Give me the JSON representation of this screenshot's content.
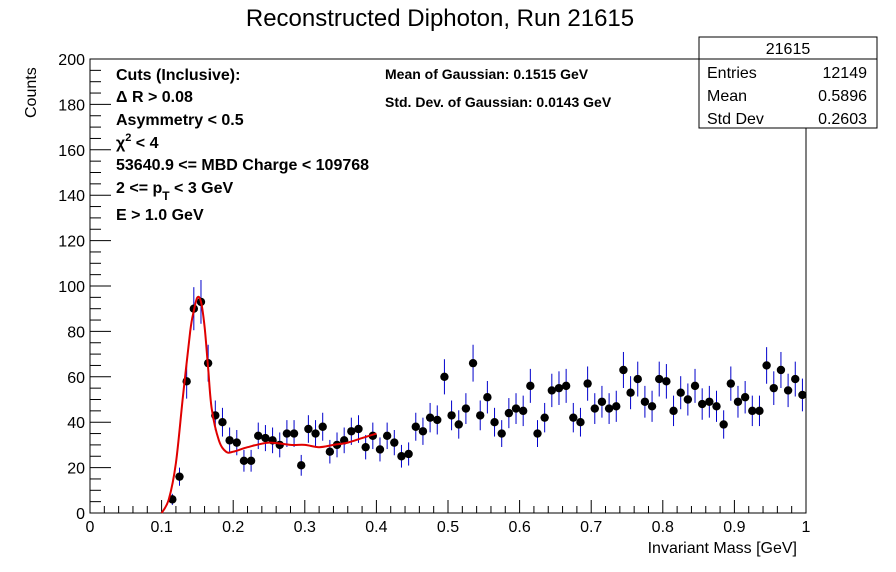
{
  "chart_data": {
    "type": "scatter",
    "title": "Reconstructed Diphoton, Run 21615",
    "xlabel": "Invariant Mass [GeV]",
    "ylabel": "Counts",
    "xlim": [
      0,
      1
    ],
    "ylim": [
      0,
      200
    ],
    "x_ticks": [
      "0",
      "0.1",
      "0.2",
      "0.3",
      "0.4",
      "0.5",
      "0.6",
      "0.7",
      "0.8",
      "0.9",
      "1"
    ],
    "y_ticks": [
      "0",
      "20",
      "40",
      "60",
      "80",
      "100",
      "120",
      "140",
      "160",
      "180",
      "200"
    ],
    "stats_box": {
      "title": "21615",
      "rows": [
        {
          "label": "Entries",
          "value": "12149"
        },
        {
          "label": "Mean",
          "value": "0.5896"
        },
        {
          "label": "Std Dev",
          "value": "0.2603"
        }
      ]
    },
    "cuts": {
      "header": "Cuts (Inclusive):",
      "delta_r": "Δ R > 0.08",
      "asymmetry": "Asymmetry < 0.5",
      "chi2_sym": "χ",
      "chi2_sup": "2",
      "chi2_rest": " < 4",
      "mbd": "53640.9 <= MBD Charge < 109768",
      "pt_pre": "2 <= p",
      "pt_sub": "T",
      "pt_post": " < 3 GeV",
      "energy": "E > 1.0 GeV"
    },
    "fit_info": {
      "mean": "Mean of Gaussian: 0.1515 GeV",
      "std": "Std. Dev. of Gaussian: 0.0143 GeV"
    },
    "colors": {
      "points": "#000000",
      "errors": "#0000cc",
      "fit": "#e00000"
    },
    "points": {
      "x": [
        0.115,
        0.125,
        0.135,
        0.145,
        0.155,
        0.165,
        0.175,
        0.185,
        0.195,
        0.205,
        0.215,
        0.225,
        0.235,
        0.245,
        0.255,
        0.265,
        0.275,
        0.285,
        0.295,
        0.305,
        0.315,
        0.325,
        0.335,
        0.345,
        0.355,
        0.365,
        0.375,
        0.385,
        0.395,
        0.405,
        0.415,
        0.425,
        0.435,
        0.445,
        0.455,
        0.465,
        0.475,
        0.485,
        0.495,
        0.505,
        0.515,
        0.525,
        0.535,
        0.545,
        0.555,
        0.565,
        0.575,
        0.585,
        0.595,
        0.605,
        0.615,
        0.625,
        0.635,
        0.645,
        0.655,
        0.665,
        0.675,
        0.685,
        0.695,
        0.705,
        0.715,
        0.725,
        0.735,
        0.745,
        0.755,
        0.765,
        0.775,
        0.785,
        0.795,
        0.805,
        0.815,
        0.825,
        0.835,
        0.845,
        0.855,
        0.865,
        0.875,
        0.885,
        0.895,
        0.905,
        0.915,
        0.925,
        0.935,
        0.945,
        0.955,
        0.965,
        0.975,
        0.985,
        0.995
      ],
      "y": [
        6,
        16,
        58,
        90,
        93,
        66,
        43,
        40,
        32,
        31,
        23,
        23,
        34,
        33,
        32,
        30,
        35,
        35,
        21,
        37,
        35,
        38,
        27,
        30,
        32,
        36,
        37,
        29,
        34,
        28,
        34,
        31,
        25,
        26,
        38,
        36,
        42,
        41,
        60,
        43,
        39,
        46,
        66,
        43,
        51,
        40,
        35,
        44,
        46,
        45,
        56,
        35,
        42,
        54,
        55,
        56,
        42,
        40,
        57,
        46,
        49,
        46,
        47,
        63,
        53,
        59,
        49,
        47,
        59,
        58,
        45,
        53,
        50,
        56,
        48,
        49,
        47,
        39,
        57,
        49,
        51,
        45,
        45,
        65,
        55,
        63,
        54,
        59,
        52
      ]
    },
    "fit_curve": {
      "x": [
        0.1,
        0.11,
        0.12,
        0.13,
        0.14,
        0.145,
        0.15,
        0.155,
        0.16,
        0.165,
        0.17,
        0.18,
        0.19,
        0.2,
        0.22,
        0.25,
        0.28,
        0.3,
        0.32,
        0.34,
        0.36,
        0.38,
        0.4
      ],
      "y": [
        0,
        6,
        22,
        52,
        80,
        89,
        95,
        93,
        82,
        64,
        46,
        32,
        27,
        27,
        29,
        31,
        30,
        30,
        29,
        30,
        31,
        33,
        35
      ]
    }
  }
}
